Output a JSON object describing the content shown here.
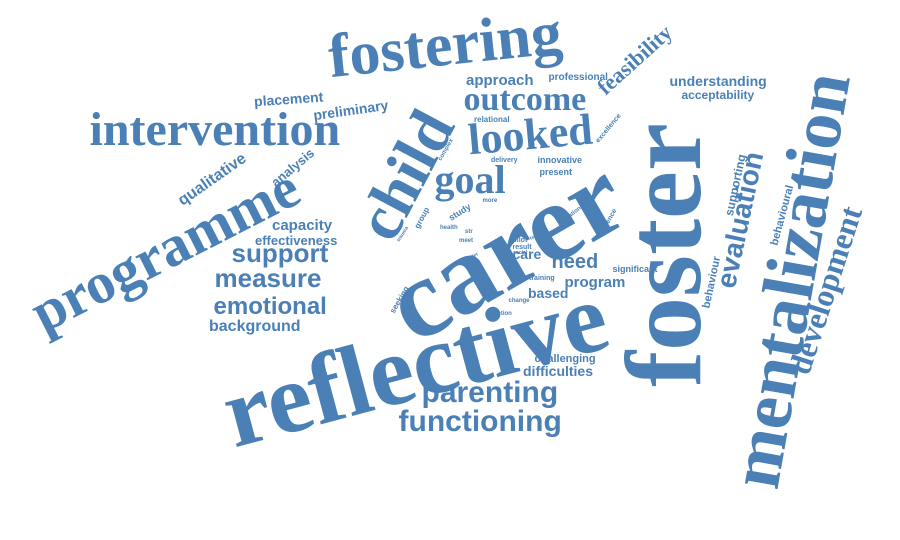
{
  "cloud": {
    "color": "#4a80b5",
    "words": [
      {
        "text": "carer",
        "weight": 112
      },
      {
        "text": "foster",
        "weight": 108
      },
      {
        "text": "reflective",
        "weight": 100
      },
      {
        "text": "mentalization",
        "weight": 72
      },
      {
        "text": "child",
        "weight": 64
      },
      {
        "text": "fostering",
        "weight": 62
      },
      {
        "text": "programme",
        "weight": 58
      },
      {
        "text": "intervention",
        "weight": 48
      },
      {
        "text": "looked",
        "weight": 44
      },
      {
        "text": "goal",
        "weight": 40
      },
      {
        "text": "outcome",
        "weight": 34
      },
      {
        "text": "development",
        "weight": 32
      },
      {
        "text": "parenting",
        "weight": 30
      },
      {
        "text": "functioning",
        "weight": 30
      },
      {
        "text": "evaluation",
        "weight": 28
      },
      {
        "text": "measure",
        "weight": 26
      },
      {
        "text": "support",
        "weight": 26
      },
      {
        "text": "emotional",
        "weight": 24
      },
      {
        "text": "feasibility",
        "weight": 22
      },
      {
        "text": "need",
        "weight": 20
      },
      {
        "text": "qualitative",
        "weight": 16
      },
      {
        "text": "background",
        "weight": 16
      },
      {
        "text": "approach",
        "weight": 15
      },
      {
        "text": "capacity",
        "weight": 15
      },
      {
        "text": "program",
        "weight": 15
      },
      {
        "text": "understanding",
        "weight": 14
      },
      {
        "text": "preliminary",
        "weight": 14
      },
      {
        "text": "placement",
        "weight": 14
      },
      {
        "text": "care",
        "weight": 14
      },
      {
        "text": "based",
        "weight": 14
      },
      {
        "text": "difficulties",
        "weight": 14
      },
      {
        "text": "analysis",
        "weight": 13
      },
      {
        "text": "effectiveness",
        "weight": 13
      },
      {
        "text": "acceptability",
        "weight": 12
      },
      {
        "text": "supporting",
        "weight": 12
      },
      {
        "text": "behavioural",
        "weight": 11
      },
      {
        "text": "behaviour",
        "weight": 11
      },
      {
        "text": "challenging",
        "weight": 11
      },
      {
        "text": "professional",
        "weight": 10
      },
      {
        "text": "innovative",
        "weight": 9
      },
      {
        "text": "present",
        "weight": 9
      },
      {
        "text": "significant",
        "weight": 9
      },
      {
        "text": "relational",
        "weight": 8
      },
      {
        "text": "study",
        "weight": 9
      },
      {
        "text": "seeking",
        "weight": 8
      },
      {
        "text": "group",
        "weight": 8
      },
      {
        "text": "excellence",
        "weight": 7
      },
      {
        "text": "delivery",
        "weight": 7
      },
      {
        "text": "pilot",
        "weight": 7
      },
      {
        "text": "result",
        "weight": 7
      },
      {
        "text": "training",
        "weight": 7
      },
      {
        "text": "evidence",
        "weight": 7
      },
      {
        "text": "meet",
        "weight": 6
      },
      {
        "text": "str",
        "weight": 6
      },
      {
        "text": "complex",
        "weight": 6
      },
      {
        "text": "health",
        "weight": 6
      },
      {
        "text": "more",
        "weight": 6
      },
      {
        "text": "national",
        "weight": 6
      },
      {
        "text": "trauma",
        "weight": 5
      },
      {
        "text": "change",
        "weight": 6
      },
      {
        "text": "emotion",
        "weight": 6
      },
      {
        "text": "social",
        "weight": 5
      },
      {
        "text": "better",
        "weight": 5
      },
      {
        "text": "term",
        "weight": 5
      }
    ]
  }
}
